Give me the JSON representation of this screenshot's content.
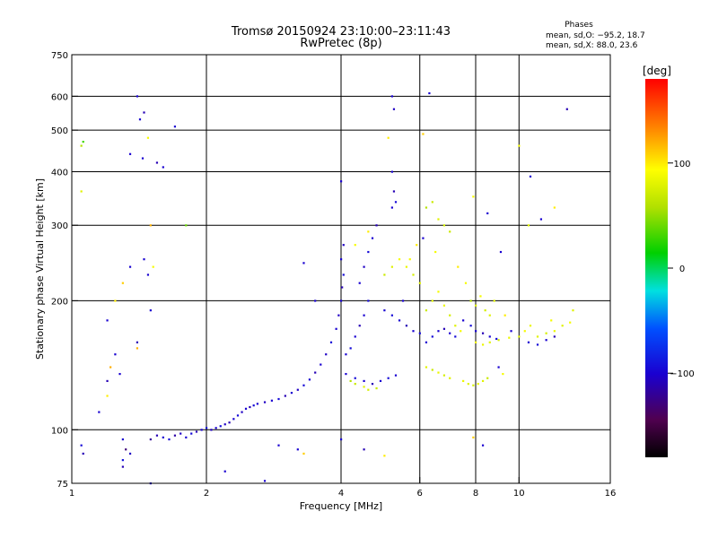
{
  "chart_data": {
    "type": "scatter",
    "title": "Tromsø 20150924 23:10:00–23:11:43",
    "subtitle": "RwPretec (8p)",
    "xlabel": "Frequency [MHz]",
    "ylabel": "Stationary phase Virtual Height [km]",
    "x_scale": "log",
    "y_scale": "log",
    "xlim": [
      1,
      16
    ],
    "ylim": [
      75,
      750
    ],
    "x_ticks": [
      1,
      2,
      4,
      6,
      8,
      10,
      16
    ],
    "y_ticks": [
      75,
      100,
      200,
      300,
      400,
      500,
      600,
      750
    ],
    "x_grid": [
      2,
      4,
      6,
      8,
      10
    ],
    "y_grid": [
      100,
      200,
      300,
      400,
      500,
      600
    ],
    "grid": true,
    "stats": {
      "heading": "Phases",
      "line1": "mean, sd,O: −95.2, 18.7",
      "line2": "mean, sd,X:  88.0, 23.6"
    },
    "colorbar": {
      "label": "[deg]",
      "range": [
        -180,
        180
      ],
      "ticks": [
        100,
        0,
        -100
      ],
      "placement": "right"
    },
    "series": [
      {
        "points": [
          [
            1.05,
            92,
            -95
          ],
          [
            1.06,
            88,
            -110
          ],
          [
            1.05,
            460,
            60
          ],
          [
            1.06,
            470,
            30
          ],
          [
            1.05,
            360,
            80
          ],
          [
            1.3,
            95,
            -100
          ],
          [
            1.32,
            90,
            -130
          ],
          [
            1.35,
            88,
            -105
          ],
          [
            1.3,
            85,
            -90
          ],
          [
            1.5,
            95,
            -120
          ],
          [
            1.55,
            97,
            -110
          ],
          [
            1.6,
            96,
            -100
          ],
          [
            1.65,
            95,
            -95
          ],
          [
            1.7,
            97,
            -115
          ],
          [
            1.75,
            98,
            -105
          ],
          [
            1.8,
            96,
            -100
          ],
          [
            1.85,
            98,
            -95
          ],
          [
            1.9,
            99,
            -110
          ],
          [
            1.95,
            100,
            -100
          ],
          [
            2.0,
            101,
            -90
          ],
          [
            2.05,
            100,
            -105
          ],
          [
            2.1,
            101,
            -100
          ],
          [
            2.15,
            102,
            -95
          ],
          [
            2.2,
            103,
            -105
          ],
          [
            2.25,
            104,
            -110
          ],
          [
            2.3,
            106,
            -100
          ],
          [
            2.35,
            108,
            -95
          ],
          [
            2.4,
            110,
            -105
          ],
          [
            2.45,
            112,
            -100
          ],
          [
            2.5,
            113,
            -110
          ],
          [
            2.55,
            114,
            -95
          ],
          [
            2.6,
            115,
            -100
          ],
          [
            2.7,
            116,
            -105
          ],
          [
            2.8,
            117,
            -100
          ],
          [
            2.9,
            118,
            -95
          ],
          [
            3.0,
            120,
            -110
          ],
          [
            3.1,
            122,
            -100
          ],
          [
            3.2,
            124,
            -105
          ],
          [
            3.3,
            127,
            -95
          ],
          [
            3.4,
            131,
            -100
          ],
          [
            3.5,
            136,
            -110
          ],
          [
            3.6,
            142,
            -100
          ],
          [
            3.7,
            150,
            -105
          ],
          [
            3.8,
            160,
            -95
          ],
          [
            3.9,
            172,
            -100
          ],
          [
            3.95,
            185,
            -105
          ],
          [
            4.0,
            200,
            -100
          ],
          [
            4.02,
            215,
            -110
          ],
          [
            4.05,
            230,
            -95
          ],
          [
            4.0,
            250,
            -100
          ],
          [
            4.05,
            270,
            -105
          ],
          [
            4.1,
            150,
            -100
          ],
          [
            4.2,
            155,
            -95
          ],
          [
            4.3,
            165,
            -100
          ],
          [
            4.4,
            175,
            -110
          ],
          [
            4.5,
            185,
            -100
          ],
          [
            4.6,
            200,
            -95
          ],
          [
            4.4,
            220,
            -100
          ],
          [
            4.5,
            240,
            -105
          ],
          [
            4.6,
            260,
            -95
          ],
          [
            4.7,
            280,
            -100
          ],
          [
            4.8,
            300,
            -110
          ],
          [
            4.1,
            135,
            -100
          ],
          [
            4.3,
            132,
            -95
          ],
          [
            4.5,
            130,
            -100
          ],
          [
            4.7,
            128,
            -110
          ],
          [
            4.9,
            130,
            -100
          ],
          [
            5.1,
            132,
            -95
          ],
          [
            5.3,
            134,
            -100
          ],
          [
            4.2,
            130,
            60
          ],
          [
            4.3,
            128,
            70
          ],
          [
            4.5,
            126,
            80
          ],
          [
            4.6,
            124,
            75
          ],
          [
            4.8,
            125,
            70
          ],
          [
            5.0,
            190,
            -100
          ],
          [
            5.2,
            185,
            -95
          ],
          [
            5.4,
            180,
            -100
          ],
          [
            5.6,
            175,
            -110
          ],
          [
            5.8,
            170,
            -100
          ],
          [
            6.0,
            168,
            -95
          ],
          [
            5.0,
            230,
            70
          ],
          [
            5.2,
            240,
            80
          ],
          [
            5.4,
            250,
            90
          ],
          [
            5.6,
            240,
            85
          ],
          [
            5.8,
            230,
            75
          ],
          [
            6.0,
            220,
            80
          ],
          [
            5.2,
            330,
            -100
          ],
          [
            5.3,
            340,
            -95
          ],
          [
            5.25,
            360,
            -110
          ],
          [
            5.2,
            600,
            -100
          ],
          [
            5.25,
            560,
            -105
          ],
          [
            5.2,
            400,
            -100
          ],
          [
            6.2,
            330,
            60
          ],
          [
            6.4,
            340,
            70
          ],
          [
            6.6,
            310,
            80
          ],
          [
            6.8,
            300,
            75
          ],
          [
            7.0,
            290,
            70
          ],
          [
            6.2,
            190,
            70
          ],
          [
            6.4,
            200,
            80
          ],
          [
            6.6,
            210,
            90
          ],
          [
            6.8,
            195,
            85
          ],
          [
            7.0,
            185,
            75
          ],
          [
            7.2,
            175,
            80
          ],
          [
            7.4,
            170,
            90
          ],
          [
            6.2,
            160,
            -100
          ],
          [
            6.4,
            165,
            -95
          ],
          [
            6.6,
            170,
            -100
          ],
          [
            6.8,
            172,
            -110
          ],
          [
            7.0,
            168,
            -100
          ],
          [
            7.2,
            165,
            -95
          ],
          [
            6.2,
            140,
            80
          ],
          [
            6.4,
            138,
            70
          ],
          [
            6.6,
            136,
            85
          ],
          [
            6.8,
            134,
            75
          ],
          [
            7.0,
            132,
            80
          ],
          [
            7.5,
            130,
            85
          ],
          [
            7.7,
            128,
            80
          ],
          [
            7.9,
            127,
            75
          ],
          [
            8.1,
            128,
            85
          ],
          [
            8.3,
            130,
            80
          ],
          [
            8.5,
            132,
            70
          ],
          [
            7.5,
            180,
            -100
          ],
          [
            7.8,
            175,
            -95
          ],
          [
            8.0,
            170,
            -100
          ],
          [
            8.3,
            168,
            -110
          ],
          [
            8.6,
            165,
            -100
          ],
          [
            8.9,
            163,
            -95
          ],
          [
            7.8,
            200,
            60
          ],
          [
            8.0,
            195,
            80
          ],
          [
            8.2,
            205,
            90
          ],
          [
            8.4,
            190,
            75
          ],
          [
            8.6,
            185,
            80
          ],
          [
            8.0,
            160,
            90
          ],
          [
            8.3,
            158,
            85
          ],
          [
            8.6,
            160,
            80
          ],
          [
            9.0,
            162,
            75
          ],
          [
            9.5,
            164,
            85
          ],
          [
            10.0,
            165,
            80
          ],
          [
            10.3,
            170,
            90
          ],
          [
            10.6,
            175,
            85
          ],
          [
            11.0,
            165,
            80
          ],
          [
            11.5,
            168,
            75
          ],
          [
            12.0,
            170,
            85
          ],
          [
            12.5,
            175,
            80
          ],
          [
            13.0,
            178,
            90
          ],
          [
            10.5,
            160,
            -100
          ],
          [
            11.0,
            158,
            -95
          ],
          [
            11.5,
            162,
            -100
          ],
          [
            12.0,
            165,
            -110
          ],
          [
            6.3,
            610,
            -100
          ],
          [
            6.1,
            490,
            110
          ],
          [
            7.9,
            350,
            90
          ],
          [
            8.5,
            320,
            -100
          ],
          [
            9.1,
            260,
            -100
          ],
          [
            10.5,
            300,
            80
          ],
          [
            11.2,
            310,
            -100
          ],
          [
            12.0,
            330,
            100
          ],
          [
            12.8,
            560,
            -110
          ],
          [
            10.6,
            390,
            -100
          ],
          [
            10.0,
            460,
            90
          ],
          [
            1.2,
            180,
            -100
          ],
          [
            1.25,
            200,
            100
          ],
          [
            1.3,
            220,
            110
          ],
          [
            1.35,
            240,
            -100
          ],
          [
            1.4,
            160,
            -110
          ],
          [
            1.25,
            150,
            -100
          ],
          [
            1.22,
            140,
            120
          ],
          [
            1.28,
            135,
            -100
          ],
          [
            1.2,
            130,
            -110
          ],
          [
            1.4,
            600,
            -100
          ],
          [
            1.45,
            550,
            -110
          ],
          [
            1.42,
            530,
            -100
          ],
          [
            1.48,
            480,
            90
          ],
          [
            1.44,
            430,
            -100
          ],
          [
            1.55,
            420,
            -110
          ],
          [
            1.6,
            410,
            -100
          ],
          [
            1.35,
            440,
            -100
          ],
          [
            1.7,
            510,
            -100
          ],
          [
            1.5,
            300,
            120
          ],
          [
            1.45,
            250,
            -100
          ],
          [
            1.52,
            240,
            90
          ],
          [
            1.48,
            230,
            -100
          ],
          [
            1.8,
            300,
            40
          ],
          [
            1.5,
            190,
            -100
          ],
          [
            1.4,
            155,
            120
          ],
          [
            1.5,
            75,
            -100
          ],
          [
            1.3,
            82,
            -110
          ],
          [
            1.2,
            120,
            100
          ],
          [
            1.15,
            110,
            -100
          ],
          [
            3.3,
            88,
            110
          ],
          [
            3.2,
            90,
            -100
          ],
          [
            2.9,
            92,
            -100
          ],
          [
            4.0,
            95,
            -100
          ],
          [
            4.5,
            90,
            -110
          ],
          [
            5.0,
            87,
            100
          ],
          [
            2.7,
            76,
            -100
          ],
          [
            2.2,
            80,
            -100
          ],
          [
            7.9,
            96,
            110
          ],
          [
            8.3,
            92,
            -100
          ],
          [
            9.0,
            140,
            -100
          ],
          [
            9.2,
            135,
            90
          ],
          [
            3.5,
            200,
            -100
          ],
          [
            3.3,
            245,
            -100
          ],
          [
            4.0,
            380,
            -100
          ],
          [
            4.3,
            270,
            90
          ],
          [
            4.6,
            290,
            100
          ],
          [
            5.1,
            480,
            100
          ],
          [
            5.5,
            200,
            -100
          ],
          [
            5.7,
            250,
            90
          ],
          [
            5.9,
            270,
            100
          ],
          [
            6.1,
            280,
            -100
          ],
          [
            6.5,
            260,
            90
          ],
          [
            7.3,
            240,
            100
          ],
          [
            7.6,
            220,
            90
          ],
          [
            8.8,
            200,
            80
          ],
          [
            9.3,
            185,
            100
          ],
          [
            9.6,
            170,
            -100
          ],
          [
            11.8,
            180,
            90
          ],
          [
            13.2,
            190,
            80
          ]
        ]
      }
    ]
  }
}
